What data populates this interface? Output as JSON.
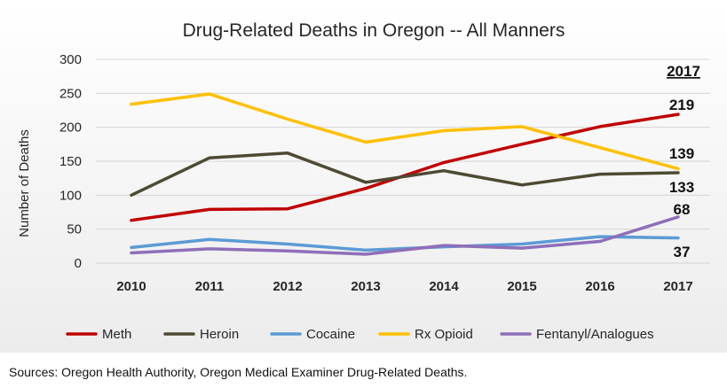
{
  "chart_data": {
    "type": "line",
    "title": "Drug-Related Deaths in Oregon -- All Manners",
    "xlabel": "",
    "ylabel": "Number of Deaths",
    "categories": [
      "2010",
      "2011",
      "2012",
      "2013",
      "2014",
      "2015",
      "2016",
      "2017"
    ],
    "ylim": [
      0,
      300
    ],
    "yticks": [
      0,
      50,
      100,
      150,
      200,
      250,
      300
    ],
    "grid": true,
    "legend_position": "bottom",
    "annotation_header": "2017",
    "series": [
      {
        "name": "Meth",
        "color": "#c00000",
        "values": [
          63,
          79,
          80,
          110,
          148,
          175,
          201,
          219
        ],
        "end_label": "219"
      },
      {
        "name": "Heroin",
        "color": "#4d4a32",
        "values": [
          100,
          155,
          162,
          119,
          136,
          115,
          131,
          133
        ],
        "end_label": "133"
      },
      {
        "name": "Cocaine",
        "color": "#5b9bd5",
        "values": [
          23,
          35,
          28,
          19,
          24,
          28,
          39,
          37
        ],
        "end_label": "37"
      },
      {
        "name": "Rx Opioid",
        "color": "#ffc000",
        "values": [
          234,
          249,
          212,
          178,
          195,
          201,
          170,
          139
        ],
        "end_label": "139"
      },
      {
        "name": "Fentanyl/Analogues",
        "color": "#8e6fb8",
        "values": [
          15,
          21,
          18,
          13,
          26,
          22,
          32,
          68
        ],
        "end_label": "68"
      }
    ]
  },
  "footer": {
    "source": "Sources: Oregon Health Authority, Oregon Medical Examiner Drug-Related Deaths."
  }
}
